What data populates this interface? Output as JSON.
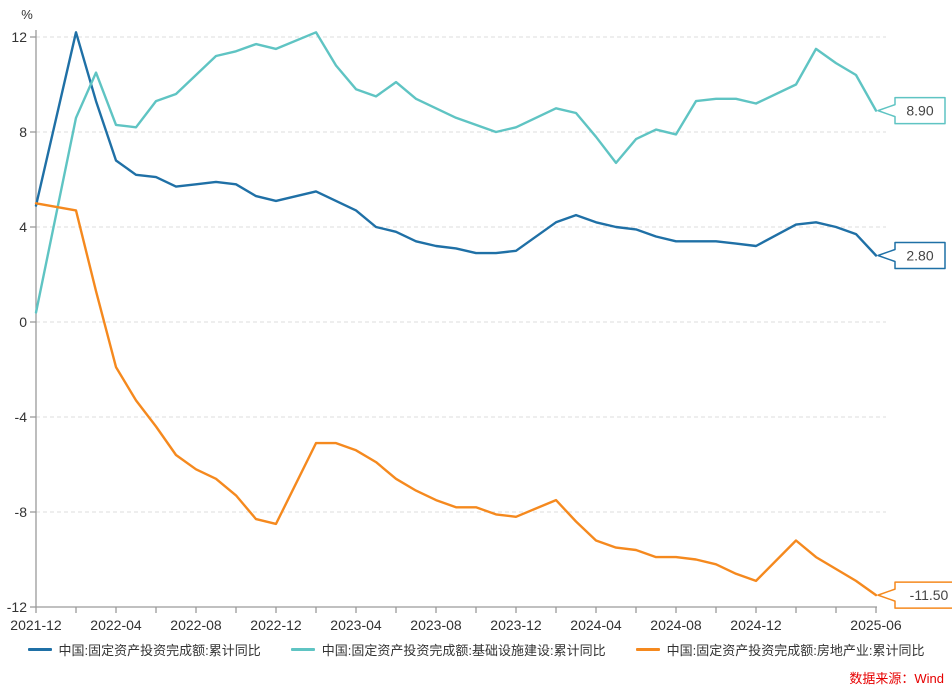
{
  "chart_data": {
    "type": "line",
    "title": "",
    "unit_label": "%",
    "grid": true,
    "legend_position": "bottom",
    "x_axis": {
      "tick_labels": [
        "2021-12",
        "2022-04",
        "2022-08",
        "2022-12",
        "2023-04",
        "2023-08",
        "2023-12",
        "2024-04",
        "2024-08",
        "2024-12",
        "2025-06"
      ],
      "minor_tick_every_months": 2,
      "note": "monthly cumulative data, no January observations"
    },
    "y_axis": {
      "min": -12,
      "max": 12,
      "step": 4,
      "tick_labels": [
        "12",
        "8",
        "4",
        "0",
        "-4",
        "-8",
        "-12"
      ]
    },
    "categories": [
      "2021-12",
      "2022-02",
      "2022-03",
      "2022-04",
      "2022-05",
      "2022-06",
      "2022-07",
      "2022-08",
      "2022-09",
      "2022-10",
      "2022-11",
      "2022-12",
      "2023-02",
      "2023-03",
      "2023-04",
      "2023-05",
      "2023-06",
      "2023-07",
      "2023-08",
      "2023-09",
      "2023-10",
      "2023-11",
      "2023-12",
      "2024-02",
      "2024-03",
      "2024-04",
      "2024-05",
      "2024-06",
      "2024-07",
      "2024-08",
      "2024-09",
      "2024-10",
      "2024-11",
      "2024-12",
      "2025-02",
      "2025-03",
      "2025-04",
      "2025-05",
      "2025-06"
    ],
    "series": [
      {
        "name": "中国:固定资产投资完成额:累计同比",
        "color": "#1f70a6",
        "end_label": "2.80",
        "values": [
          4.9,
          12.2,
          9.3,
          6.8,
          6.2,
          6.1,
          5.7,
          5.8,
          5.9,
          5.8,
          5.3,
          5.1,
          5.5,
          5.1,
          4.7,
          4.0,
          3.8,
          3.4,
          3.2,
          3.1,
          2.9,
          2.9,
          3.0,
          4.2,
          4.5,
          4.2,
          4.0,
          3.9,
          3.6,
          3.4,
          3.4,
          3.4,
          3.3,
          3.2,
          4.1,
          4.2,
          4.0,
          3.7,
          2.8
        ]
      },
      {
        "name": "中国:固定资产投资完成额:基础设施建设:累计同比",
        "color": "#5fc4c3",
        "end_label": "8.90",
        "values": [
          0.4,
          8.6,
          10.5,
          8.3,
          8.2,
          9.3,
          9.6,
          10.4,
          11.2,
          11.4,
          11.7,
          11.5,
          12.2,
          10.8,
          9.8,
          9.5,
          10.1,
          9.4,
          9.0,
          8.6,
          8.3,
          8.0,
          8.2,
          9.0,
          8.8,
          7.8,
          6.7,
          7.7,
          8.1,
          7.9,
          9.3,
          9.4,
          9.4,
          9.2,
          10.0,
          11.5,
          10.9,
          10.4,
          8.9
        ]
      },
      {
        "name": "中国:固定资产投资完成额:房地产业:累计同比",
        "color": "#f5891e",
        "end_label": "-11.50",
        "values": [
          5.0,
          4.7,
          1.3,
          -1.9,
          -3.3,
          -4.4,
          -5.6,
          -6.2,
          -6.6,
          -7.3,
          -8.3,
          -8.5,
          -5.1,
          -5.1,
          -5.4,
          -5.9,
          -6.6,
          -7.1,
          -7.5,
          -7.8,
          -7.8,
          -8.1,
          -8.2,
          -7.5,
          -8.4,
          -9.2,
          -9.5,
          -9.6,
          -9.9,
          -9.9,
          -10.0,
          -10.2,
          -10.6,
          -10.9,
          -9.2,
          -9.9,
          -10.4,
          -10.9,
          -11.5
        ]
      }
    ]
  },
  "source_note": "数据来源：Wind",
  "style": {
    "axis_color": "#9a9a9a",
    "grid_color": "#dcdcdc",
    "text_color": "#333333",
    "callout_text_color": "#444444"
  }
}
